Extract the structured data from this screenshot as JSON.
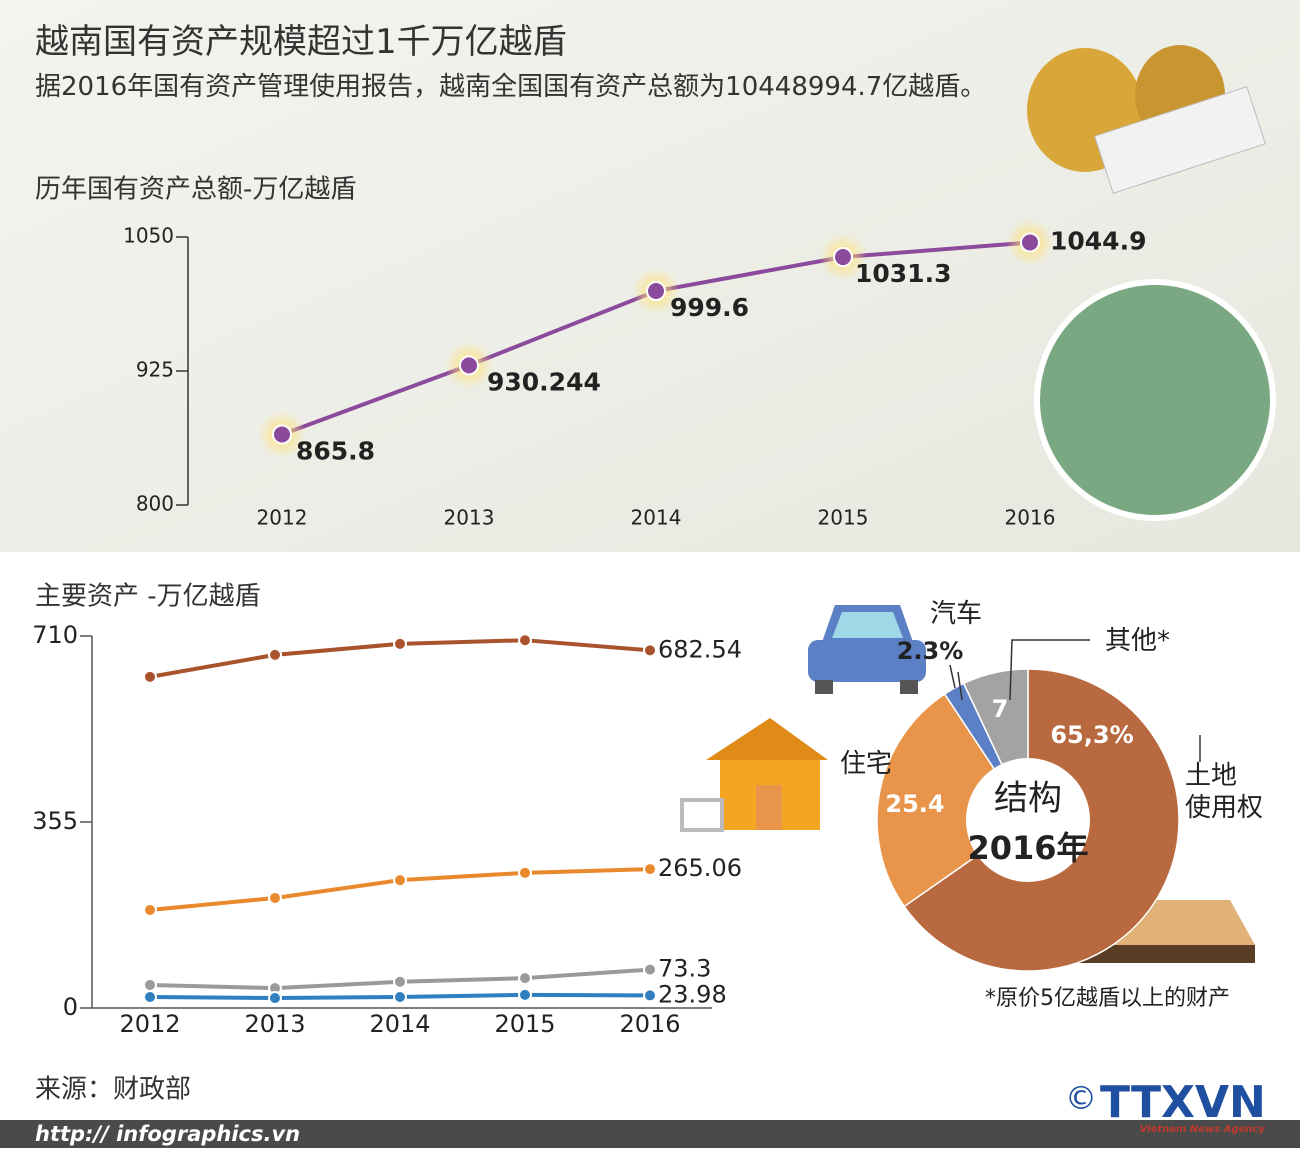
{
  "header": {
    "title": "越南国有资产规模超过1千万亿越盾",
    "subtitle": "据2016年国有资产管理使用报告，越南全国国有资产总额为10448994.7亿越盾。"
  },
  "chart_data": [
    {
      "type": "line",
      "title": "历年国有资产总额-万亿越盾",
      "categories": [
        "2012",
        "2013",
        "2014",
        "2015",
        "2016"
      ],
      "values": [
        865.8,
        930.244,
        999.6,
        1031.3,
        1044.9
      ],
      "color": "#8b4a9c",
      "ylim": [
        800,
        1050
      ],
      "yticks": [
        800,
        925,
        1050
      ]
    },
    {
      "type": "line",
      "title": "主要资产 -万亿越盾",
      "categories": [
        "2012",
        "2013",
        "2014",
        "2015",
        "2016"
      ],
      "series": [
        {
          "color": "#a9532c",
          "values": [
            632,
            674,
            695,
            702,
            682.54
          ]
        },
        {
          "color": "#e9892e",
          "values": [
            187,
            210,
            244,
            258,
            265.06
          ]
        },
        {
          "color": "#9a9a9a",
          "values": [
            44,
            38,
            50,
            57,
            73.3
          ]
        },
        {
          "color": "#2f7fc1",
          "values": [
            21,
            19,
            21,
            25,
            23.98
          ]
        }
      ],
      "ylim": [
        0,
        710
      ],
      "yticks": [
        0,
        355,
        710
      ]
    },
    {
      "type": "pie",
      "title": "结构",
      "subtitle": "2016年",
      "categories": [
        "土地\n使用权",
        "住宅",
        "汽车",
        "其他*"
      ],
      "values": [
        65.3,
        25.4,
        2.3,
        7
      ],
      "value_labels": [
        "65,3%",
        "25.4",
        "2.3%",
        "7"
      ],
      "colors": [
        "#b8693f",
        "#e8944a",
        "#5b80c6",
        "#a3a3a3"
      ],
      "note": "*原价5亿越盾以上的财产"
    }
  ],
  "footer": {
    "source": "来源：财政部",
    "url": "http:// infographics.vn",
    "copyright": "©",
    "logo": "TTXVN",
    "logo_sub": "Vietnam News Agency"
  }
}
